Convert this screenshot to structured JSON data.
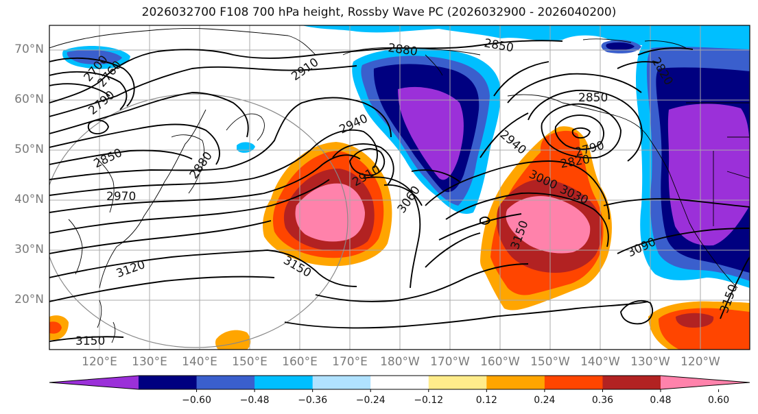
{
  "title": "2026032700 F108 700 hPa height, Rossby Wave PC (2026032900 - 2026040200)",
  "lat_labels": [
    "70°N",
    "60°N",
    "50°N",
    "40°N",
    "30°N",
    "20°N"
  ],
  "lon_labels": [
    "120°E",
    "130°E",
    "140°E",
    "150°E",
    "160°E",
    "170°E",
    "180°W",
    "170°W",
    "160°W",
    "150°W",
    "140°W",
    "130°W",
    "120°W"
  ],
  "contour_labels": [
    "2880",
    "2850",
    "2910",
    "2790",
    "2760",
    "2700",
    "2850",
    "2940",
    "2880",
    "2970",
    "2910",
    "3060",
    "2940",
    "3000",
    "3030",
    "2790",
    "2820",
    "2850",
    "3150",
    "3090",
    "3120",
    "3150",
    "3150",
    "3150",
    "2820"
  ],
  "colorbar": {
    "colors": [
      "#9b30d9",
      "#000080",
      "#3a5fcd",
      "#00bfff",
      "#b0e2ff",
      "#ffffff",
      "#ffec8b",
      "#ffa500",
      "#ff4500",
      "#b22222",
      "#ff82ab"
    ],
    "tick_labels": [
      "−0.60",
      "−0.48",
      "−0.36",
      "−0.24",
      "−0.12",
      "0.12",
      "0.24",
      "0.36",
      "0.48",
      "0.60"
    ]
  }
}
